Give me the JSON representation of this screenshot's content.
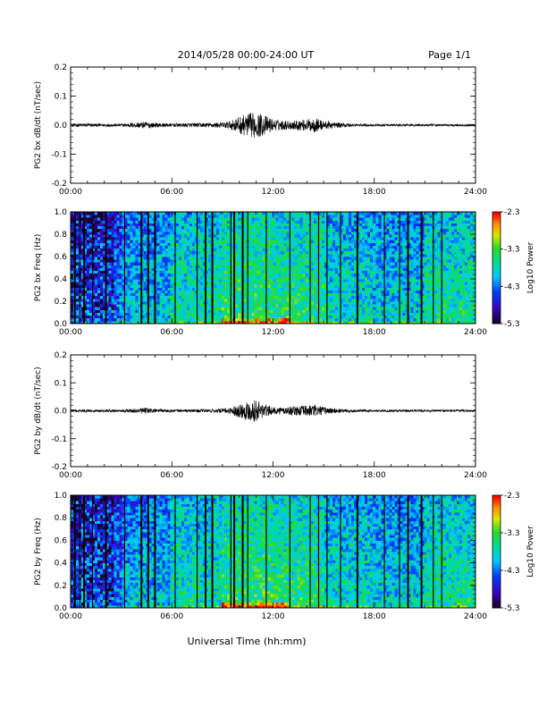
{
  "header": {
    "title": "2014/05/28  00:00-24:00 UT",
    "page": "Page 1/1"
  },
  "x_axis_label": "Universal Time (hh:mm)",
  "chart_data": [
    {
      "type": "line",
      "ylabel": "PG2 bx dB/dt (nT/sec)",
      "xlim": [
        0,
        24
      ],
      "ylim": [
        -0.2,
        0.2
      ],
      "x_ticks": [
        "00:00",
        "06:00",
        "12:00",
        "18:00",
        "24:00"
      ],
      "y_ticks": [
        "-0.2",
        "-0.1",
        "0.0",
        "0.1",
        "0.2"
      ],
      "series": [
        {
          "envelope": {
            "hours": [
              0,
              1,
              2,
              3,
              4,
              4.5,
              5,
              6,
              7,
              8,
              9,
              9.5,
              10,
              10.5,
              11,
              11.5,
              12,
              13,
              14,
              14.5,
              15,
              16,
              17,
              18,
              19,
              20,
              21,
              22,
              23,
              24
            ],
            "amplitude": [
              0.006,
              0.006,
              0.005,
              0.005,
              0.01,
              0.012,
              0.008,
              0.006,
              0.007,
              0.008,
              0.01,
              0.015,
              0.03,
              0.04,
              0.045,
              0.035,
              0.02,
              0.015,
              0.02,
              0.025,
              0.015,
              0.008,
              0.005,
              0.004,
              0.004,
              0.004,
              0.004,
              0.004,
              0.004,
              0.004
            ]
          }
        }
      ]
    },
    {
      "type": "heatmap",
      "ylabel": "PG2 bx Freq (Hz)",
      "xlim": [
        0,
        24
      ],
      "ylim": [
        0,
        1.0
      ],
      "x_ticks": [
        "00:00",
        "06:00",
        "12:00",
        "18:00",
        "24:00"
      ],
      "y_ticks": [
        "0.0",
        "0.2",
        "0.4",
        "0.6",
        "0.8",
        "1.0"
      ],
      "colorbar": {
        "label": "Log10 Power",
        "range": [
          -5.3,
          -2.3
        ],
        "ticks": [
          "-2.3",
          "-3.3",
          "-4.3",
          "-5.3"
        ]
      },
      "gaps_hours": [
        0.25,
        0.55,
        0.8,
        1.3,
        2.1,
        3.2,
        4.2,
        4.6,
        5.0,
        6.2,
        7.5,
        8.0,
        8.4,
        9.5,
        9.7,
        10.2,
        10.5,
        11.6,
        13.0,
        14.2,
        14.7,
        15.2,
        16.0,
        17.0,
        18.6,
        19.5,
        20.0,
        20.8,
        21.5,
        22.0
      ]
    },
    {
      "type": "line",
      "ylabel": "PG2 by dB/dt (nT/sec)",
      "xlim": [
        0,
        24
      ],
      "ylim": [
        -0.2,
        0.2
      ],
      "x_ticks": [
        "00:00",
        "06:00",
        "12:00",
        "18:00",
        "24:00"
      ],
      "y_ticks": [
        "-0.2",
        "-0.1",
        "0.0",
        "0.1",
        "0.2"
      ],
      "series": [
        {
          "envelope": {
            "hours": [
              0,
              1,
              2,
              3,
              4,
              4.5,
              5,
              6,
              7,
              8,
              9,
              9.5,
              10,
              10.5,
              11,
              11.5,
              12,
              13,
              14,
              14.5,
              15,
              16,
              17,
              18,
              19,
              20,
              21,
              22,
              23,
              24
            ],
            "amplitude": [
              0.005,
              0.005,
              0.005,
              0.005,
              0.008,
              0.012,
              0.007,
              0.005,
              0.005,
              0.006,
              0.008,
              0.012,
              0.025,
              0.035,
              0.04,
              0.025,
              0.012,
              0.015,
              0.02,
              0.022,
              0.014,
              0.007,
              0.005,
              0.004,
              0.004,
              0.004,
              0.004,
              0.004,
              0.004,
              0.004
            ]
          }
        }
      ]
    },
    {
      "type": "heatmap",
      "ylabel": "PG2 by Freq (Hz)",
      "xlim": [
        0,
        24
      ],
      "ylim": [
        0,
        1.0
      ],
      "x_ticks": [
        "00:00",
        "06:00",
        "12:00",
        "18:00",
        "24:00"
      ],
      "y_ticks": [
        "0.0",
        "0.2",
        "0.4",
        "0.6",
        "0.8",
        "1.0"
      ],
      "colorbar": {
        "label": "Log10 Power",
        "range": [
          -5.3,
          -2.3
        ],
        "ticks": [
          "-2.3",
          "-3.3",
          "-4.3",
          "-5.3"
        ]
      },
      "gaps_hours": [
        0.25,
        0.55,
        0.8,
        1.3,
        2.1,
        3.2,
        4.2,
        4.6,
        5.0,
        6.2,
        7.5,
        8.0,
        8.4,
        9.5,
        9.7,
        10.2,
        10.5,
        11.6,
        13.0,
        14.2,
        14.7,
        15.2,
        16.0,
        17.0,
        18.6,
        19.5,
        20.0,
        20.8,
        21.5,
        22.0
      ]
    }
  ]
}
